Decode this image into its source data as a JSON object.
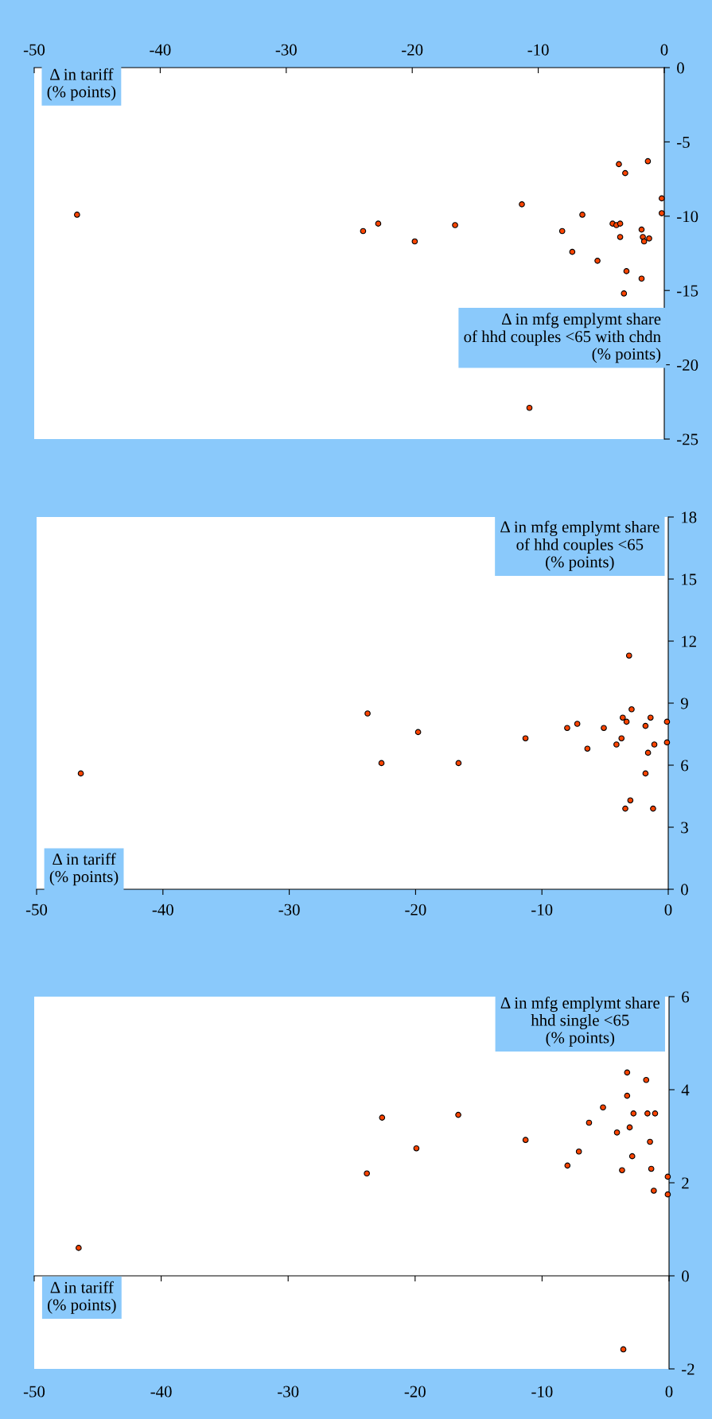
{
  "chart_data": [
    {
      "type": "scatter",
      "xlabel": "Δ in tariff\n(% points)",
      "ylabel": "Δ in mfg emplymt share\nof hhd couples <65 with chdn\n(% points)",
      "color": "#ff4500",
      "marker": "circle",
      "grid": false,
      "x": [
        -46.6,
        -23.9,
        -22.7,
        -19.8,
        -16.6,
        -11.3,
        -8.1,
        -6.5,
        -7.3,
        -5.3,
        -4.1,
        -3.8,
        -3.5,
        -3.6,
        -3.1,
        -1.3,
        -3.5,
        -3.0,
        -3.2,
        -1.8,
        -1.7,
        -1.6,
        -1.2,
        -1.8,
        -0.2,
        -0.2,
        -10.7
      ],
      "values": [
        -9.9,
        -11.0,
        -10.5,
        -11.7,
        -10.6,
        -9.2,
        -11.0,
        -9.9,
        -12.4,
        -13.0,
        -10.5,
        -10.6,
        -10.5,
        -6.5,
        -7.1,
        -6.3,
        -11.4,
        -13.7,
        -15.2,
        -10.9,
        -11.4,
        -11.7,
        -11.5,
        -14.2,
        -8.8,
        -9.8,
        -22.9
      ],
      "xlim": [
        -50,
        0
      ],
      "xticks": [
        -50,
        -40,
        -30,
        -20,
        -10,
        0
      ],
      "ylim": [
        -25,
        0
      ],
      "yticks": [
        -25,
        -20,
        -15,
        -10,
        -5,
        0
      ]
    },
    {
      "type": "scatter",
      "xlabel": "Δ in tariff\n(% points)",
      "ylabel": "Δ in mfg emplymt share\nof hhd couples <65\n(% points)",
      "color": "#ff4500",
      "marker": "circle",
      "grid": false,
      "x": [
        -46.5,
        -23.8,
        -22.7,
        -19.8,
        -16.6,
        -11.3,
        -8.0,
        -7.2,
        -6.4,
        -5.1,
        -4.1,
        -3.7,
        -3.6,
        -3.3,
        -2.9,
        -3.1,
        -3.0,
        -3.4,
        -1.8,
        -1.4,
        -1.1,
        -1.6,
        -1.8,
        -1.2,
        -0.1,
        -0.1
      ],
      "values": [
        5.6,
        8.5,
        6.1,
        7.6,
        6.1,
        7.3,
        7.8,
        8.0,
        6.8,
        7.8,
        7.0,
        7.3,
        8.3,
        8.1,
        8.7,
        11.3,
        4.3,
        3.9,
        7.9,
        8.3,
        7.0,
        6.6,
        5.6,
        3.9,
        8.1,
        7.1
      ],
      "xlim": [
        -50,
        0
      ],
      "xticks": [
        -50,
        -40,
        -30,
        -20,
        -10,
        0
      ],
      "ylim": [
        0,
        18
      ],
      "yticks": [
        0,
        3,
        6,
        9,
        12,
        15,
        18
      ]
    },
    {
      "type": "scatter",
      "xlabel": "Δ in tariff\n(% points)",
      "ylabel": "Δ in mfg emplymt share\nhhd single <65\n(% points)",
      "color": "#ff4500",
      "marker": "circle",
      "x": [
        -46.5,
        -23.8,
        -22.6,
        -19.9,
        -16.6,
        -11.3,
        -8.0,
        -7.1,
        -6.3,
        -5.2,
        -4.1,
        -3.7,
        -3.3,
        -3.3,
        -3.1,
        -2.8,
        -2.9,
        -3.6,
        -1.8,
        -1.7,
        -1.1,
        -1.5,
        -1.4,
        -1.2,
        -0.1,
        -0.1
      ],
      "values": [
        0.6,
        2.2,
        3.4,
        2.74,
        3.46,
        2.92,
        2.37,
        2.67,
        3.29,
        3.62,
        3.08,
        2.27,
        4.37,
        3.87,
        3.19,
        3.49,
        2.57,
        -1.58,
        4.21,
        3.49,
        3.49,
        2.88,
        2.3,
        1.83,
        2.13,
        1.75
      ],
      "xlim": [
        -50,
        0
      ],
      "xticks": [
        -50,
        -40,
        -30,
        -20,
        -10,
        0
      ],
      "ylim": [
        -2,
        6
      ],
      "yticks": [
        -2,
        0,
        2,
        4,
        6
      ]
    }
  ]
}
